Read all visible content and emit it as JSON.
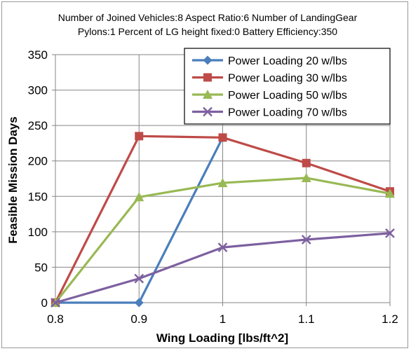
{
  "chart_data": {
    "type": "line",
    "title": "Number of Joined Vehicles:8 Aspect Ratio:6 Number of LandingGear Pylons:1 Percent of LG height fixed:0 Battery Efficiency:350",
    "title_lines": [
      "Number of Joined Vehicles:8 Aspect Ratio:6 Number of LandingGear",
      "Pylons:1 Percent of LG height fixed:0 Battery Efficiency:350"
    ],
    "xlabel": "Wing Loading  [lbs/ft^2]",
    "ylabel": "Feasible Mission Days",
    "x": [
      0.8,
      0.9,
      1,
      1.1,
      1.2
    ],
    "x_tick_labels": [
      "0.8",
      "0.9",
      "1",
      "1.1",
      "1.2"
    ],
    "xlim": [
      0.8,
      1.2
    ],
    "ylim": [
      0,
      350
    ],
    "y_ticks": [
      0,
      50,
      100,
      150,
      200,
      250,
      300,
      350
    ],
    "grid": true,
    "legend_position": "top-right",
    "series": [
      {
        "name": "Power Loading  20 w/lbs",
        "color": "#4a7ebb",
        "marker": "diamond",
        "points": [
          [
            0.8,
            0
          ],
          [
            0.9,
            0
          ],
          [
            1,
            233
          ]
        ]
      },
      {
        "name": "Power Loading  30 w/lbs",
        "color": "#be4b48",
        "marker": "square",
        "points": [
          [
            0.8,
            0
          ],
          [
            0.9,
            235
          ],
          [
            1,
            233
          ],
          [
            1.1,
            197
          ],
          [
            1.2,
            157
          ]
        ]
      },
      {
        "name": "Power Loading  50 w/lbs",
        "color": "#98b954",
        "marker": "triangle",
        "points": [
          [
            0.8,
            0
          ],
          [
            0.9,
            149
          ],
          [
            1,
            169
          ],
          [
            1.1,
            176
          ],
          [
            1.2,
            154
          ]
        ]
      },
      {
        "name": "Power Loading  70 w/lbs",
        "color": "#7d60a0",
        "marker": "x",
        "points": [
          [
            0.8,
            0
          ],
          [
            0.9,
            34
          ],
          [
            1,
            78
          ],
          [
            1.1,
            89
          ],
          [
            1.2,
            98
          ]
        ]
      }
    ]
  }
}
